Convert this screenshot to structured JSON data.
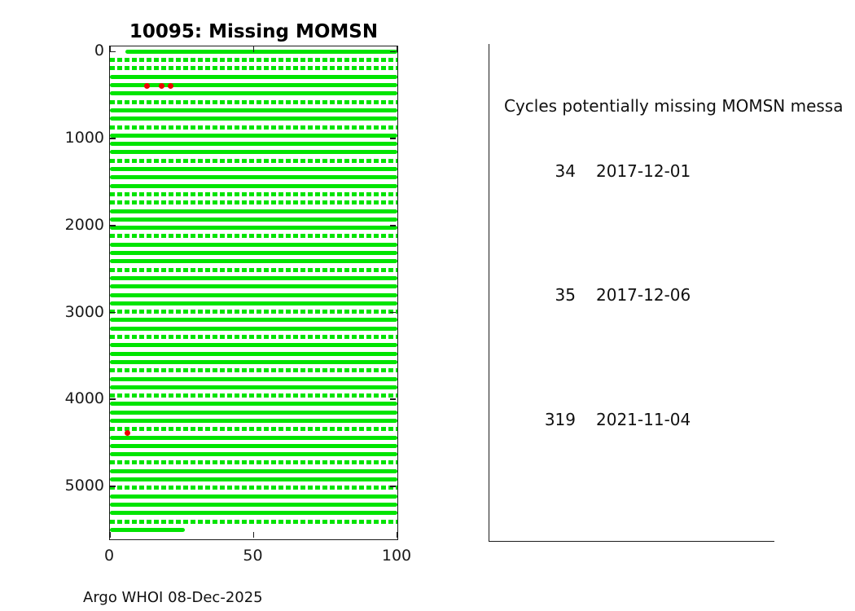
{
  "title": "10095: Missing MOMSN",
  "footer": "Argo WHOI 08-Dec-2025",
  "right_panel": {
    "heading": "Cycles potentially missing MOMSN messa",
    "entries": [
      {
        "cycle": "34",
        "date": "2017-12-01"
      },
      {
        "cycle": "35",
        "date": "2017-12-06"
      },
      {
        "cycle": "319",
        "date": "2021-11-04"
      }
    ]
  },
  "colors": {
    "marker_green": "#00e400",
    "marker_red": "#f00000",
    "axis": "#1c1c1c",
    "background": "#ffffff"
  },
  "chart_data": {
    "type": "scatter",
    "title": "10095: Missing MOMSN",
    "xlabel": "",
    "ylabel": "",
    "xlim": [
      0,
      100
    ],
    "ylim": [
      -60,
      5610
    ],
    "y_inverted": true,
    "grid": false,
    "xticks": [
      0,
      50,
      100
    ],
    "yticks": [
      0,
      1000,
      2000,
      3000,
      4000,
      5000
    ],
    "rows": [
      {
        "y": 0,
        "s": "solid",
        "x0": 5.5
      },
      {
        "y": 97,
        "s": "dashed"
      },
      {
        "y": 193,
        "s": "dashed"
      },
      {
        "y": 290,
        "s": "solid"
      },
      {
        "y": 386,
        "s": "solid"
      },
      {
        "y": 483,
        "s": "solid"
      },
      {
        "y": 579,
        "s": "dashed"
      },
      {
        "y": 676,
        "s": "solid"
      },
      {
        "y": 772,
        "s": "solid"
      },
      {
        "y": 869,
        "s": "dashed"
      },
      {
        "y": 965,
        "s": "solid"
      },
      {
        "y": 1062,
        "s": "solid"
      },
      {
        "y": 1158,
        "s": "solid"
      },
      {
        "y": 1255,
        "s": "dashed"
      },
      {
        "y": 1351,
        "s": "solid"
      },
      {
        "y": 1448,
        "s": "solid"
      },
      {
        "y": 1544,
        "s": "solid"
      },
      {
        "y": 1641,
        "s": "dashed"
      },
      {
        "y": 1737,
        "s": "dashed"
      },
      {
        "y": 1834,
        "s": "solid"
      },
      {
        "y": 1930,
        "s": "solid"
      },
      {
        "y": 2027,
        "s": "solid"
      },
      {
        "y": 2123,
        "s": "dashed"
      },
      {
        "y": 2220,
        "s": "solid"
      },
      {
        "y": 2316,
        "s": "solid"
      },
      {
        "y": 2413,
        "s": "solid"
      },
      {
        "y": 2509,
        "s": "dashed"
      },
      {
        "y": 2606,
        "s": "solid"
      },
      {
        "y": 2702,
        "s": "solid"
      },
      {
        "y": 2799,
        "s": "solid"
      },
      {
        "y": 2895,
        "s": "solid"
      },
      {
        "y": 2992,
        "s": "dashed"
      },
      {
        "y": 3088,
        "s": "solid"
      },
      {
        "y": 3185,
        "s": "solid"
      },
      {
        "y": 3281,
        "s": "dashed"
      },
      {
        "y": 3378,
        "s": "solid"
      },
      {
        "y": 3474,
        "s": "solid"
      },
      {
        "y": 3571,
        "s": "solid"
      },
      {
        "y": 3667,
        "s": "dashed"
      },
      {
        "y": 3764,
        "s": "solid"
      },
      {
        "y": 3860,
        "s": "solid"
      },
      {
        "y": 3957,
        "s": "dashed"
      },
      {
        "y": 4053,
        "s": "solid"
      },
      {
        "y": 4150,
        "s": "solid"
      },
      {
        "y": 4246,
        "s": "solid"
      },
      {
        "y": 4343,
        "s": "dashed"
      },
      {
        "y": 4439,
        "s": "solid"
      },
      {
        "y": 4536,
        "s": "solid"
      },
      {
        "y": 4632,
        "s": "solid"
      },
      {
        "y": 4729,
        "s": "dashed"
      },
      {
        "y": 4825,
        "s": "solid"
      },
      {
        "y": 4922,
        "s": "solid"
      },
      {
        "y": 5018,
        "s": "dashed"
      },
      {
        "y": 5115,
        "s": "solid"
      },
      {
        "y": 5211,
        "s": "solid"
      },
      {
        "y": 5308,
        "s": "solid"
      },
      {
        "y": 5404,
        "s": "dashed"
      },
      {
        "y": 5501,
        "s": "solid",
        "x1": 26
      }
    ],
    "red_points": [
      {
        "x": 13,
        "y": 391
      },
      {
        "x": 18,
        "y": 391
      },
      {
        "x": 21,
        "y": 391
      },
      {
        "x": 6,
        "y": 4390
      }
    ]
  }
}
